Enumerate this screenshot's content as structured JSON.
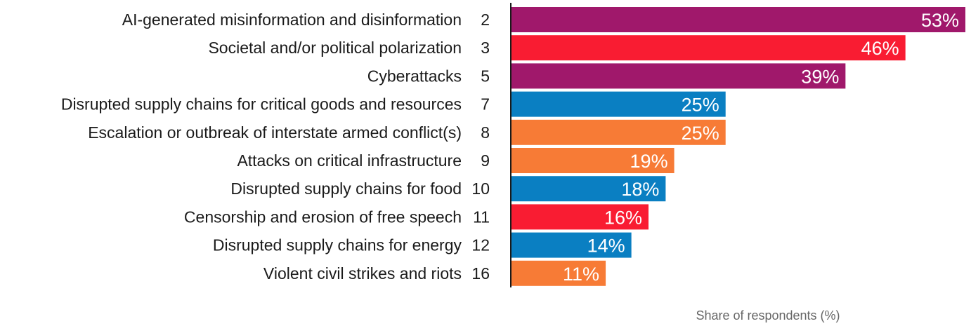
{
  "chart_data": {
    "type": "bar",
    "orientation": "horizontal",
    "categories": [
      "AI-generated misinformation and disinformation",
      "Societal and/or political polarization",
      "Cyberattacks",
      "Disrupted supply chains for critical goods and resources",
      "Escalation or outbreak of interstate armed conflict(s)",
      "Attacks on critical infrastructure",
      "Disrupted supply chains for food",
      "Censorship and erosion of free speech",
      "Disrupted supply chains for energy",
      "Violent civil strikes and riots"
    ],
    "ranks": [
      "2",
      "3",
      "5",
      "7",
      "8",
      "9",
      "10",
      "11",
      "12",
      "16"
    ],
    "values": [
      53,
      46,
      39,
      25,
      25,
      19,
      18,
      16,
      14,
      11
    ],
    "value_labels": [
      "53%",
      "46%",
      "39%",
      "25%",
      "25%",
      "19%",
      "18%",
      "16%",
      "14%",
      "11%"
    ],
    "bar_colors": [
      "#a0186b",
      "#f91c32",
      "#a0186b",
      "#0a7fc2",
      "#f77b36",
      "#f77b36",
      "#0a7fc2",
      "#f91c32",
      "#0a7fc2",
      "#f77b36"
    ],
    "xlabel": "Share of respondents (%)",
    "xlim": [
      0,
      53
    ],
    "grid": false,
    "legend": "none"
  }
}
